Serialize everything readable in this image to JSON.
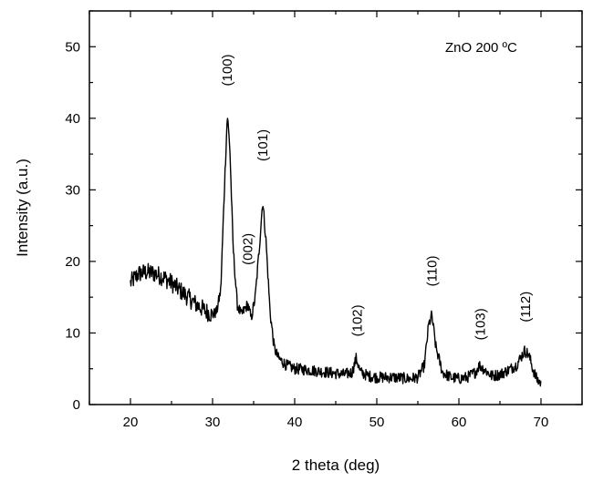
{
  "chart_data": {
    "type": "line",
    "legend_text": "ZnO 200 ºC",
    "xlabel": "2 theta (deg)",
    "ylabel": "Intensity (a.u.)",
    "xlim": [
      15,
      75
    ],
    "ylim": [
      0,
      55
    ],
    "x_ticks": [
      20,
      30,
      40,
      50,
      60,
      70
    ],
    "y_ticks": [
      0,
      10,
      20,
      30,
      40,
      50
    ],
    "grid": false,
    "legend_position": "top-right",
    "line_color": "#000000",
    "series": [
      {
        "points": [
          [
            20.0,
            17.0
          ],
          [
            21.0,
            18.3
          ],
          [
            22.0,
            18.5
          ],
          [
            23.0,
            18.3
          ],
          [
            24.0,
            17.8
          ],
          [
            25.0,
            17.0
          ],
          [
            26.0,
            16.0
          ],
          [
            27.0,
            15.0
          ],
          [
            28.0,
            14.0
          ],
          [
            29.0,
            13.2
          ],
          [
            30.0,
            12.5
          ],
          [
            30.5,
            13.0
          ],
          [
            31.0,
            16.0
          ],
          [
            31.5,
            32.0
          ],
          [
            31.8,
            40.5
          ],
          [
            32.1,
            36.0
          ],
          [
            32.5,
            22.0
          ],
          [
            33.0,
            14.0
          ],
          [
            33.5,
            12.5
          ],
          [
            34.0,
            13.5
          ],
          [
            34.3,
            14.0
          ],
          [
            34.7,
            12.0
          ],
          [
            35.2,
            15.0
          ],
          [
            35.7,
            22.0
          ],
          [
            36.1,
            28.5
          ],
          [
            36.5,
            23.0
          ],
          [
            37.0,
            13.0
          ],
          [
            37.5,
            8.0
          ],
          [
            38.0,
            6.5
          ],
          [
            39.0,
            5.5
          ],
          [
            40.0,
            5.0
          ],
          [
            42.0,
            4.8
          ],
          [
            44.0,
            4.5
          ],
          [
            46.0,
            4.2
          ],
          [
            47.0,
            4.5
          ],
          [
            47.5,
            6.5
          ],
          [
            48.0,
            4.5
          ],
          [
            49.0,
            4.0
          ],
          [
            50.0,
            3.8
          ],
          [
            52.0,
            3.8
          ],
          [
            54.0,
            3.6
          ],
          [
            55.0,
            3.8
          ],
          [
            55.8,
            5.5
          ],
          [
            56.3,
            11.0
          ],
          [
            56.7,
            12.5
          ],
          [
            57.2,
            8.0
          ],
          [
            58.0,
            4.5
          ],
          [
            59.0,
            3.8
          ],
          [
            60.0,
            3.6
          ],
          [
            61.0,
            3.8
          ],
          [
            62.0,
            4.5
          ],
          [
            62.5,
            5.5
          ],
          [
            63.0,
            5.0
          ],
          [
            64.0,
            4.0
          ],
          [
            65.0,
            4.2
          ],
          [
            66.0,
            4.8
          ],
          [
            67.0,
            5.5
          ],
          [
            67.5,
            6.5
          ],
          [
            68.0,
            7.5
          ],
          [
            68.5,
            7.0
          ],
          [
            69.0,
            5.0
          ],
          [
            69.5,
            3.5
          ],
          [
            70.0,
            3.0
          ]
        ]
      }
    ],
    "annotations": [
      {
        "text": "(100)",
        "x": 31.8,
        "y": 44.5
      },
      {
        "text": "(002)",
        "x": 34.3,
        "y": 19.5
      },
      {
        "text": "(101)",
        "x": 36.1,
        "y": 34.0
      },
      {
        "text": "(102)",
        "x": 47.6,
        "y": 9.5
      },
      {
        "text": "(110)",
        "x": 56.7,
        "y": 16.5
      },
      {
        "text": "(103)",
        "x": 62.6,
        "y": 9.0
      },
      {
        "text": "(112)",
        "x": 68.1,
        "y": 11.5
      }
    ]
  }
}
